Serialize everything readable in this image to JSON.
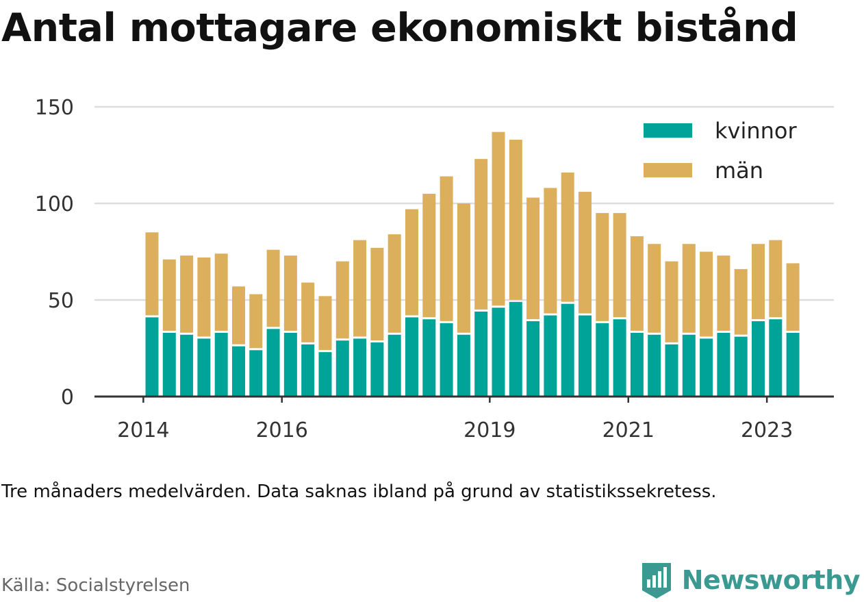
{
  "title": "Antal mottagare ekonomiskt bistånd",
  "note": "Tre månaders medelvärden. Data saknas ibland på grund av statistikssekretess.",
  "source": "Källa: Socialstyrelsen",
  "brand": {
    "name": "Newsworthy",
    "icon": "newsworthy-logo-icon",
    "color": "#3a9a92"
  },
  "colors": {
    "kvinnor": "#00a398",
    "man": "#dbaf5c",
    "grid": "#dddddd",
    "axis": "#333333"
  },
  "chart_data": {
    "type": "bar",
    "stacked": true,
    "x_ticks": [
      "2014",
      "2016",
      "2019",
      "2021",
      "2023"
    ],
    "y_ticks": [
      0,
      50,
      100,
      150
    ],
    "ylim": [
      0,
      150
    ],
    "grid": true,
    "legend_position": "top-right",
    "series": [
      {
        "name": "kvinnor",
        "color": "#00a398",
        "values": [
          41,
          33,
          32,
          30,
          33,
          26,
          24,
          35,
          33,
          27,
          23,
          29,
          30,
          28,
          32,
          41,
          40,
          38,
          32,
          44,
          46,
          49,
          39,
          42,
          48,
          42,
          38,
          40,
          33,
          32,
          27,
          32,
          30,
          33,
          31,
          39,
          40,
          33
        ]
      },
      {
        "name": "män",
        "color": "#dbaf5c",
        "values": [
          44,
          38,
          41,
          42,
          41,
          31,
          29,
          41,
          40,
          32,
          29,
          41,
          51,
          49,
          52,
          56,
          65,
          76,
          68,
          79,
          91,
          84,
          64,
          66,
          68,
          64,
          57,
          55,
          50,
          47,
          43,
          47,
          45,
          40,
          35,
          40,
          41,
          36
        ]
      }
    ],
    "x_tick_bar_index": [
      -1,
      7,
      19,
      27,
      35
    ]
  }
}
